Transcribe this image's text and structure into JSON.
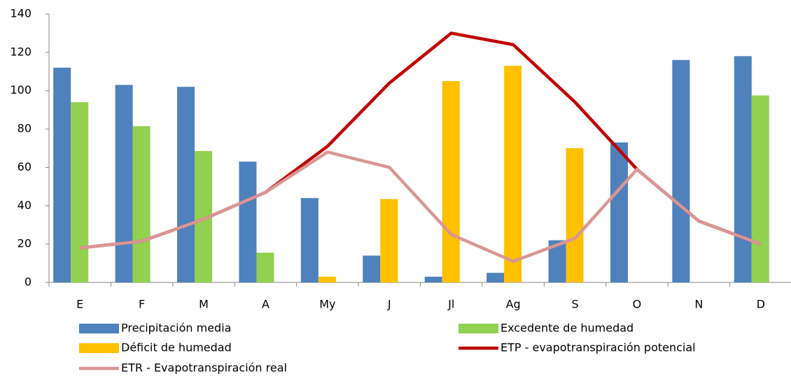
{
  "chart_data": {
    "type": "bar",
    "categories": [
      "E",
      "F",
      "M",
      "A",
      "My",
      "J",
      "Jl",
      "Ag",
      "S",
      "O",
      "N",
      "D"
    ],
    "series": [
      {
        "name": "Precipitación media",
        "type": "bar",
        "color": "#4F81BD",
        "values": [
          112,
          103,
          102,
          63,
          44,
          14,
          3,
          5,
          22,
          73,
          116,
          118
        ]
      },
      {
        "name": "Excedente de humedad",
        "type": "bar",
        "color": "#92D050",
        "values": [
          94,
          81.5,
          68.5,
          15.5,
          null,
          null,
          null,
          null,
          null,
          null,
          null,
          97.5
        ]
      },
      {
        "name": "Déficit de humedad",
        "type": "bar",
        "color": "#FFC000",
        "values": [
          null,
          null,
          null,
          null,
          3,
          43.5,
          105,
          113,
          70,
          null,
          null,
          null
        ]
      },
      {
        "name": "ETP - evapotranspiración potencial",
        "type": "line",
        "color": "#C00000",
        "values": [
          18,
          21.5,
          33,
          47,
          71,
          104,
          130,
          124,
          94,
          59,
          32,
          20
        ]
      },
      {
        "name": "ETR - Evapotranspiración real",
        "type": "line",
        "color": "#D99694",
        "values": [
          18,
          21.5,
          33,
          47,
          68,
          60,
          25,
          11,
          23,
          59,
          32,
          20
        ]
      }
    ],
    "ylim": [
      0,
      140
    ],
    "yticks": [
      0,
      20,
      40,
      60,
      80,
      100,
      120,
      140
    ],
    "legend": "bottom"
  }
}
